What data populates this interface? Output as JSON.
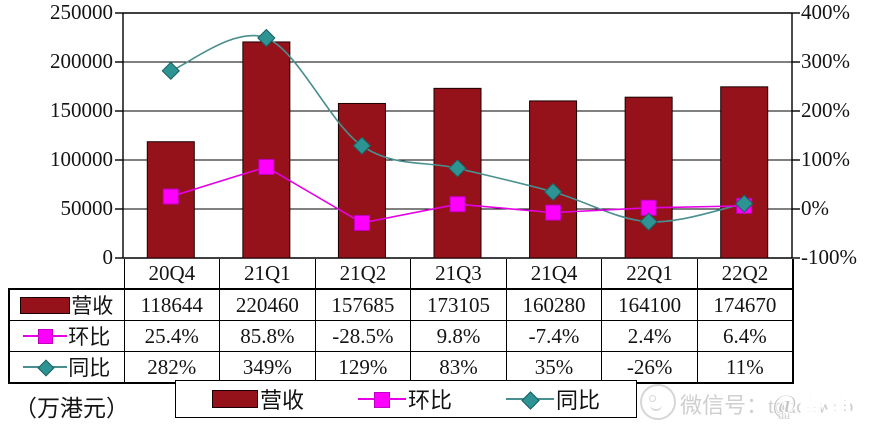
{
  "unit_label": "（万港元）",
  "watermark": {
    "wechat": "微信号：touchweb",
    "brand": "@雷递",
    "du": "du"
  },
  "colors": {
    "bar_fill": "#96121A",
    "bar_stroke": "#1a0000",
    "qoq_magenta": "#FF00FF",
    "qoq_line": "#E600E6",
    "yoy_teal": "#2E9393",
    "yoy_line": "#4A8F8F",
    "grid": "#000000"
  },
  "chart_data": {
    "type": "bar-line-combo",
    "title": "",
    "categories": [
      "20Q4",
      "21Q1",
      "21Q2",
      "21Q3",
      "21Q4",
      "22Q1",
      "22Q2"
    ],
    "series": [
      {
        "key": "revenue",
        "name": "营收",
        "type": "bar",
        "axis": "left",
        "values": [
          118644,
          220460,
          157685,
          173105,
          160280,
          164100,
          174670
        ],
        "table_values": [
          "118644",
          "220460",
          "157685",
          "173105",
          "160280",
          "164100",
          "174670"
        ]
      },
      {
        "key": "qoq",
        "name": "环比",
        "type": "line",
        "marker": "square",
        "axis": "right",
        "smooth": false,
        "values": [
          25.4,
          85.8,
          -28.5,
          9.8,
          -7.4,
          2.4,
          6.4
        ],
        "table_values": [
          "25.4%",
          "85.8%",
          "-28.5%",
          "9.8%",
          "-7.4%",
          "2.4%",
          "6.4%"
        ]
      },
      {
        "key": "yoy",
        "name": "同比",
        "type": "line",
        "marker": "diamond",
        "axis": "right",
        "smooth": true,
        "values": [
          282,
          349,
          129,
          83,
          35,
          -26,
          11
        ],
        "table_values": [
          "282%",
          "349%",
          "129%",
          "83%",
          "35%",
          "-26%",
          "11%"
        ]
      }
    ],
    "left_axis": {
      "min": 0,
      "max": 250000,
      "ticks": [
        "250000",
        "200000",
        "150000",
        "100000",
        "50000",
        "0"
      ]
    },
    "right_axis": {
      "min": -100,
      "max": 400,
      "ticks": [
        "400%",
        "300%",
        "200%",
        "100%",
        "0%",
        "-100%"
      ]
    },
    "grid": true,
    "legend_position": "bottom"
  }
}
